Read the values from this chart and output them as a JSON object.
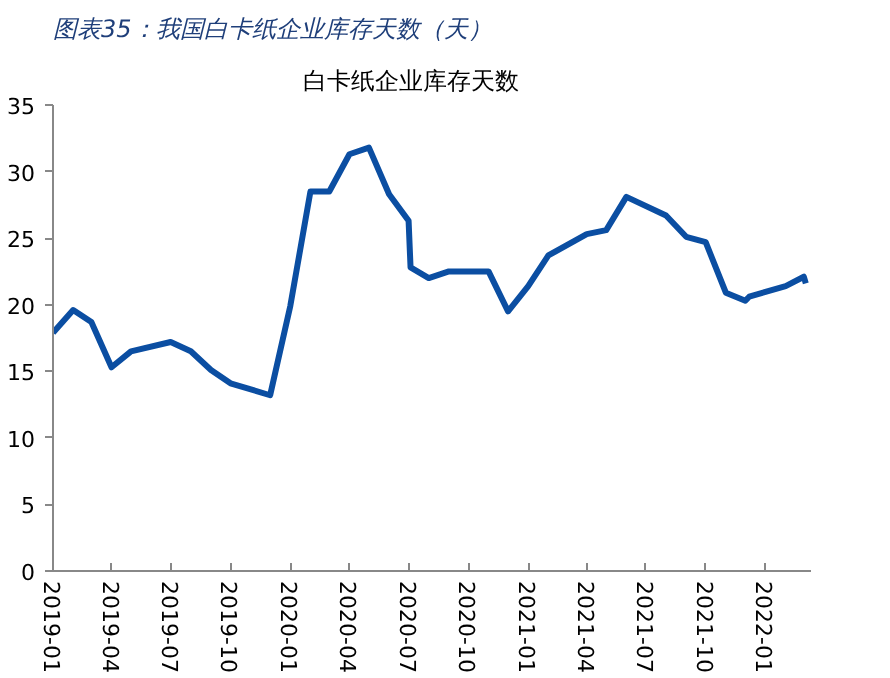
{
  "chart_data": {
    "type": "line",
    "title": "图表35：我国白卡纸企业库存天数（天）",
    "subtitle": "白卡纸企业库存天数",
    "x": [
      "2019-01-01",
      "2019-02-01",
      "2019-03-01",
      "2019-04-01",
      "2019-05-01",
      "2019-07-01",
      "2019-08-01",
      "2019-09-01",
      "2019-10-01",
      "2019-12-01",
      "2020-01-01",
      "2020-02-01",
      "2020-03-01",
      "2020-04-01",
      "2020-05-01",
      "2020-06-01",
      "2020-07-01",
      "2020-07-04",
      "2020-08-01",
      "2020-09-01",
      "2020-11-01",
      "2020-12-01",
      "2021-01-01",
      "2021-02-01",
      "2021-04-01",
      "2021-05-01",
      "2021-06-01",
      "2021-08-01",
      "2021-09-01",
      "2021-10-01",
      "2021-11-01",
      "2021-12-01",
      "2021-12-07",
      "2022-02-01",
      "2022-03-01",
      "2022-03-04"
    ],
    "series": [
      {
        "color": "#0b4ea2",
        "values": [
          17.9,
          19.6,
          18.7,
          15.3,
          16.5,
          17.2,
          16.5,
          15.1,
          14.1,
          13.2,
          19.9,
          28.5,
          28.5,
          31.3,
          31.8,
          28.3,
          26.3,
          22.8,
          22.0,
          22.5,
          22.5,
          19.5,
          21.4,
          23.7,
          25.3,
          25.6,
          28.1,
          26.7,
          25.1,
          24.7,
          20.9,
          20.3,
          20.6,
          21.4,
          22.1,
          21.6
        ]
      }
    ],
    "xlim": [
      "2019-01-01",
      "2022-03-12"
    ],
    "xticks": [
      "2019-01",
      "2019-04",
      "2019-07",
      "2019-10",
      "2020-01",
      "2020-04",
      "2020-07",
      "2020-10",
      "2021-01",
      "2021-04",
      "2021-07",
      "2021-10",
      "2022-01"
    ],
    "ylim": [
      0,
      35
    ],
    "yticks": [
      0,
      5,
      10,
      15,
      20,
      25,
      30,
      35
    ],
    "grid": false
  }
}
